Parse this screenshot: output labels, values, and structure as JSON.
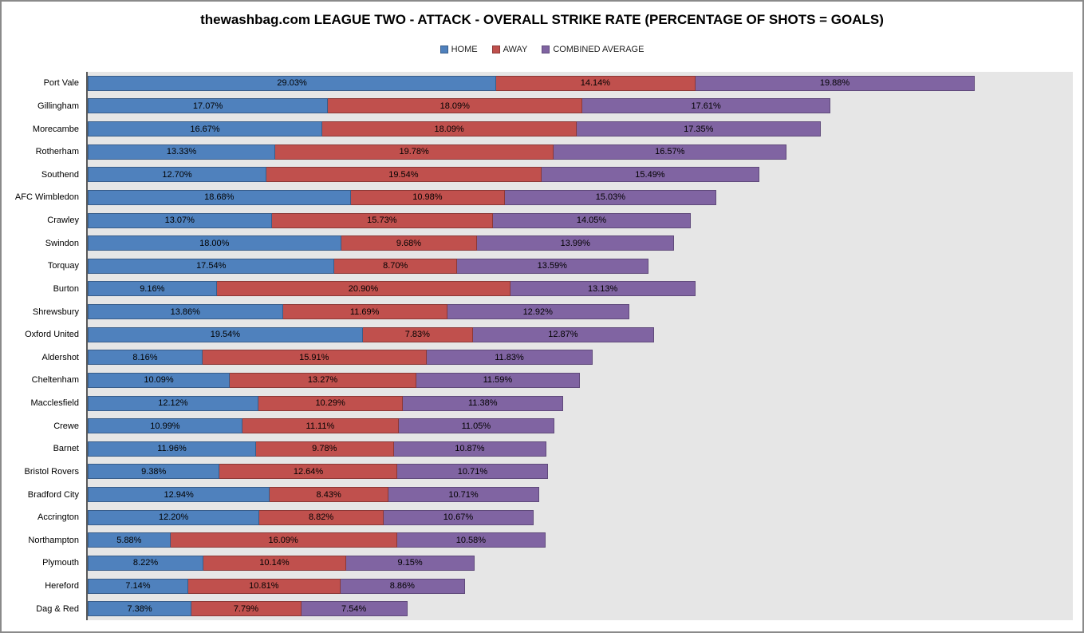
{
  "chart_data": {
    "type": "bar",
    "orientation": "horizontal-stacked",
    "title": "thewashbag.com LEAGUE TWO - ATTACK - OVERALL STRIKE RATE (PERCENTAGE OF SHOTS = GOALS)",
    "xlim": [
      0,
      70
    ],
    "value_suffix": "%",
    "legend_position": "top",
    "plot_bg": "#e6e6e6",
    "grid": false,
    "categories": [
      "Port Vale",
      "Gillingham",
      "Morecambe",
      "Rotherham",
      "Southend",
      "AFC Wimbledon",
      "Crawley",
      "Swindon",
      "Torquay",
      "Burton",
      "Shrewsbury",
      "Oxford United",
      "Aldershot",
      "Cheltenham",
      "Macclesfield",
      "Crewe",
      "Barnet",
      "Bristol Rovers",
      "Bradford City",
      "Accrington",
      "Northampton",
      "Plymouth",
      "Hereford",
      "Dag & Red"
    ],
    "series": [
      {
        "name": "HOME",
        "color": "#4f81bd",
        "border_color": "#385d8a",
        "values": [
          29.03,
          17.07,
          16.67,
          13.33,
          12.7,
          18.68,
          13.07,
          18.0,
          17.54,
          9.16,
          13.86,
          19.54,
          8.16,
          10.09,
          12.12,
          10.99,
          11.96,
          9.38,
          12.94,
          12.2,
          5.88,
          8.22,
          7.14,
          7.38
        ]
      },
      {
        "name": "AWAY",
        "color": "#c0504d",
        "border_color": "#8c3836",
        "values": [
          14.14,
          18.09,
          18.09,
          19.78,
          19.54,
          10.98,
          15.73,
          9.68,
          8.7,
          20.9,
          11.69,
          7.83,
          15.91,
          13.27,
          10.29,
          11.11,
          9.78,
          12.64,
          8.43,
          8.82,
          16.09,
          10.14,
          10.81,
          7.79
        ]
      },
      {
        "name": "COMBINED AVERAGE",
        "color": "#8064a2",
        "border_color": "#604a7b",
        "values": [
          19.88,
          17.61,
          17.35,
          16.57,
          15.49,
          15.03,
          14.05,
          13.99,
          13.59,
          13.13,
          12.92,
          12.87,
          11.83,
          11.59,
          11.38,
          11.05,
          10.87,
          10.71,
          10.71,
          10.67,
          10.58,
          9.15,
          8.86,
          7.54
        ]
      }
    ]
  }
}
